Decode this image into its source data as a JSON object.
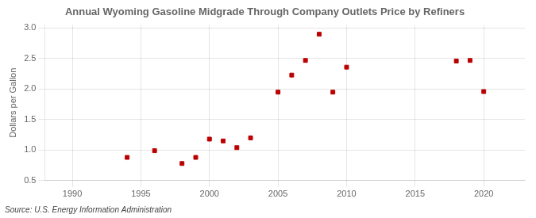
{
  "chart_data": {
    "type": "scatter",
    "title": "Annual Wyoming Gasoline Midgrade Through Company Outlets Price by Refiners",
    "ylabel": "Dollars per Gallon",
    "annotation": "Source: U.S. Energy Information Administration",
    "x": [
      1994,
      1996,
      1998,
      1999,
      2000,
      2001,
      2002,
      2003,
      2005,
      2006,
      2007,
      2008,
      2009,
      2010,
      2018,
      2019,
      2020
    ],
    "values": [
      0.88,
      0.99,
      0.78,
      0.88,
      1.18,
      1.15,
      1.04,
      1.2,
      1.95,
      2.23,
      2.47,
      2.9,
      1.95,
      2.36,
      2.46,
      2.47,
      1.96
    ],
    "color": "#bb0000",
    "marker": "square",
    "xlim": [
      1988,
      2023
    ],
    "xticks": [
      1990,
      1995,
      2000,
      2005,
      2010,
      2015,
      2020
    ],
    "ylim": [
      0.5,
      3.05
    ],
    "yticks": [
      0.5,
      {
        "value": 1,
        "label": "1.0"
      },
      1.5,
      {
        "value": 2,
        "label": "2.0"
      },
      2.5,
      {
        "value": 3,
        "label": "3.0"
      }
    ],
    "grid": true
  }
}
